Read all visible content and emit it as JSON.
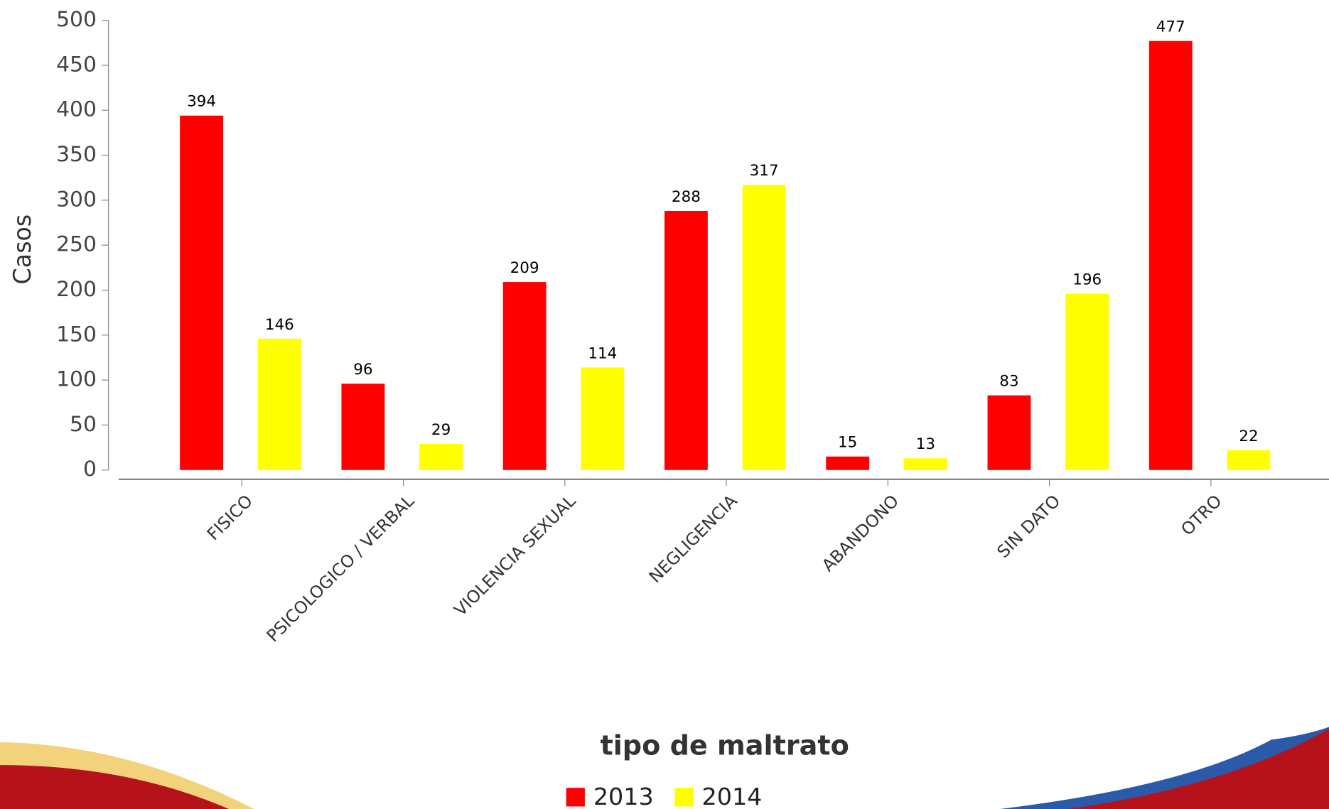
{
  "chart_data": {
    "type": "bar",
    "x_label": "tipo de maltrato",
    "y_label": "Casos",
    "categories": [
      "FISICO",
      "PSICOLOGICO / VERBAL",
      "VIOLENCIA SEXUAL",
      "NEGLIGENCIA",
      "ABANDONO",
      "SIN DATO",
      "OTRO"
    ],
    "series": [
      {
        "name": "2013",
        "color": "#ff0000",
        "values": [
          394,
          96,
          209,
          288,
          15,
          83,
          477
        ]
      },
      {
        "name": "2014",
        "color": "#ffff00",
        "values": [
          146,
          29,
          114,
          317,
          13,
          196,
          22
        ]
      }
    ],
    "ylim": [
      0,
      500
    ],
    "yticks": [
      0,
      50,
      100,
      150,
      200,
      250,
      300,
      350,
      400,
      450,
      500
    ]
  }
}
